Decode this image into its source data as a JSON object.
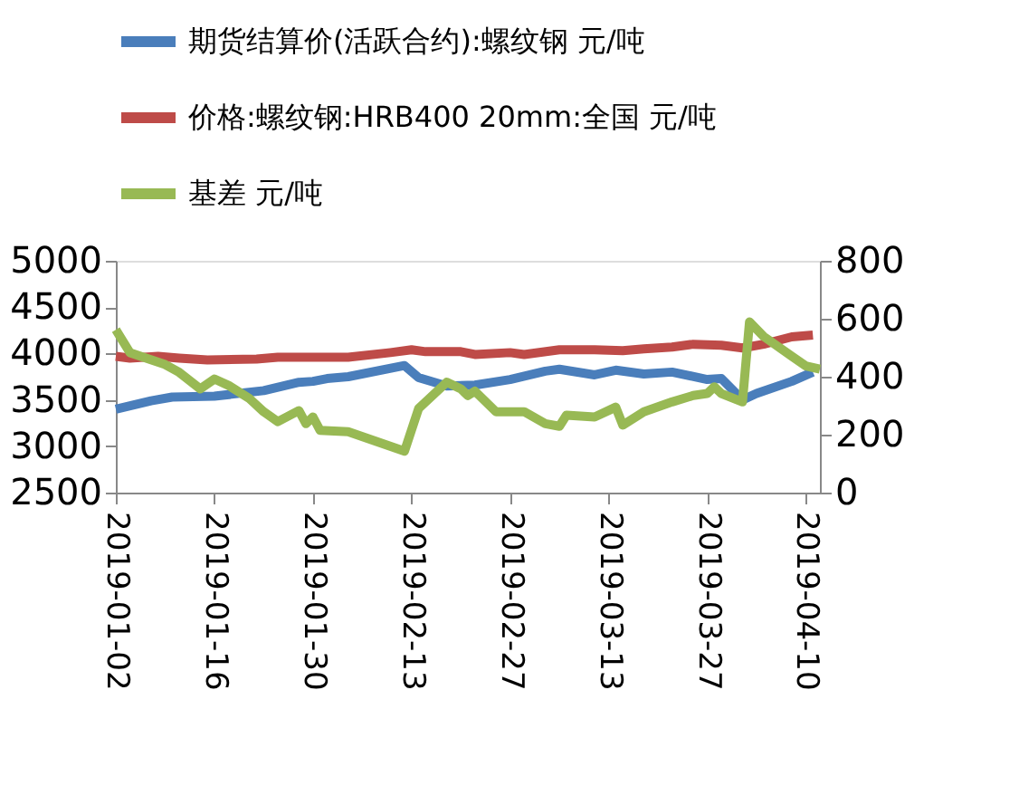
{
  "chart_data": {
    "type": "line",
    "legend": "top",
    "grid": false,
    "line_style": "solid",
    "marker": "none",
    "xlim": [
      "2019-01-02",
      "2019-04-12"
    ],
    "xticks": [
      "2019-01-02",
      "2019-01-16",
      "2019-01-30",
      "2019-02-13",
      "2019-02-27",
      "2019-03-13",
      "2019-03-27",
      "2019-04-10"
    ],
    "ylim": [
      2500,
      5000
    ],
    "yticks": [
      2500,
      3000,
      3500,
      4000,
      4500,
      5000
    ],
    "y2lim": [
      0,
      800
    ],
    "y2ticks": [
      0,
      200,
      400,
      600,
      800
    ],
    "series": [
      {
        "name": "期货结算价(活跃合约):螺纹钢  元/吨",
        "color": "#4a7ebb",
        "x": [
          "2019-01-02",
          "2019-01-07",
          "2019-01-10",
          "2019-01-16",
          "2019-01-23",
          "2019-01-28",
          "2019-01-30",
          "2019-02-01",
          "2019-02-04",
          "2019-02-12",
          "2019-02-14",
          "2019-02-18",
          "2019-02-22",
          "2019-02-27",
          "2019-03-04",
          "2019-03-06",
          "2019-03-11",
          "2019-03-14",
          "2019-03-18",
          "2019-03-22",
          "2019-03-27",
          "2019-03-29",
          "2019-04-01",
          "2019-04-03",
          "2019-04-08",
          "2019-04-11"
        ],
        "values": [
          3400,
          3490,
          3530,
          3540,
          3600,
          3690,
          3700,
          3730,
          3750,
          3870,
          3740,
          3650,
          3660,
          3720,
          3810,
          3830,
          3770,
          3820,
          3780,
          3800,
          3720,
          3730,
          3500,
          3570,
          3700,
          3800
        ]
      },
      {
        "name": "价格:螺纹钢:HRB400  20mm:全国  元/吨",
        "color": "#be4b48",
        "x": [
          "2019-01-02",
          "2019-01-04",
          "2019-01-08",
          "2019-01-11",
          "2019-01-15",
          "2019-01-22",
          "2019-01-25",
          "2019-01-30",
          "2019-02-04",
          "2019-02-10",
          "2019-02-13",
          "2019-02-15",
          "2019-02-20",
          "2019-02-22",
          "2019-02-27",
          "2019-03-01",
          "2019-03-06",
          "2019-03-11",
          "2019-03-15",
          "2019-03-18",
          "2019-03-22",
          "2019-03-25",
          "2019-03-29",
          "2019-04-01",
          "2019-04-04",
          "2019-04-08",
          "2019-04-11"
        ],
        "values": [
          3970,
          3950,
          3970,
          3950,
          3930,
          3940,
          3960,
          3960,
          3960,
          4010,
          4040,
          4020,
          4020,
          3990,
          4010,
          3990,
          4040,
          4040,
          4030,
          4050,
          4070,
          4100,
          4090,
          4060,
          4100,
          4180,
          4200
        ]
      },
      {
        "name": "基差  元/吨",
        "color": "#98b954",
        "axis": "y2",
        "x": [
          "2019-01-02",
          "2019-01-04",
          "2019-01-09",
          "2019-01-11",
          "2019-01-14",
          "2019-01-16",
          "2019-01-18",
          "2019-01-21",
          "2019-01-23",
          "2019-01-25",
          "2019-01-28",
          "2019-01-29",
          "2019-01-30",
          "2019-01-31",
          "2019-02-04",
          "2019-02-12",
          "2019-02-14",
          "2019-02-18",
          "2019-02-20",
          "2019-02-21",
          "2019-02-22",
          "2019-02-25",
          "2019-03-01",
          "2019-03-04",
          "2019-03-06",
          "2019-03-07",
          "2019-03-11",
          "2019-03-14",
          "2019-03-15",
          "2019-03-18",
          "2019-03-22",
          "2019-03-25",
          "2019-03-27",
          "2019-03-28",
          "2019-03-29",
          "2019-04-01",
          "2019-04-02",
          "2019-04-04",
          "2019-04-08",
          "2019-04-10",
          "2019-04-12"
        ],
        "values": [
          562,
          483,
          442,
          415,
          358,
          392,
          370,
          324,
          279,
          245,
          283,
          238,
          261,
          215,
          210,
          143,
          290,
          381,
          358,
          335,
          350,
          279,
          279,
          238,
          229,
          267,
          261,
          295,
          233,
          279,
          313,
          335,
          342,
          365,
          342,
          313,
          589,
          539,
          471,
          437,
          426
        ]
      }
    ]
  }
}
